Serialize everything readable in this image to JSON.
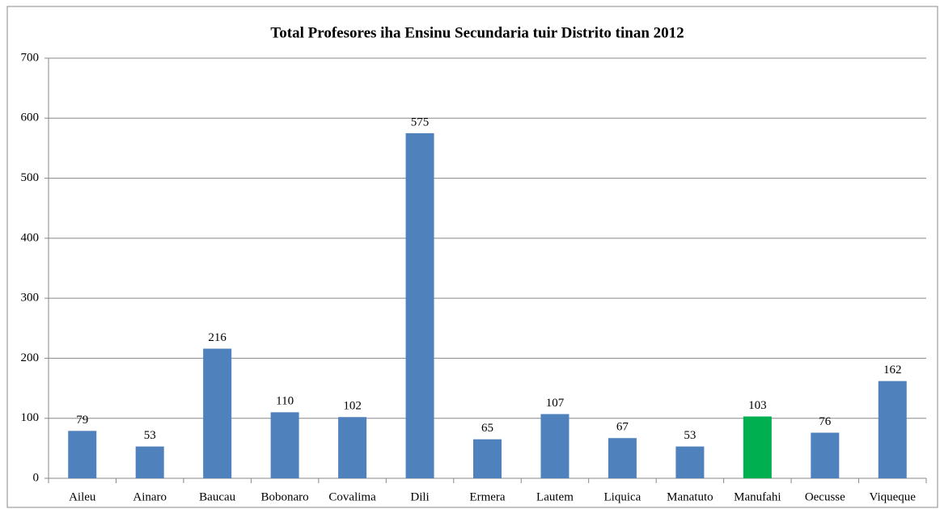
{
  "chart_data": {
    "type": "bar",
    "title": "Total Profesores iha Ensinu Secundaria tuir Distrito tinan 2012",
    "categories": [
      "Aileu",
      "Ainaro",
      "Baucau",
      "Bobonaro",
      "Covalima",
      "Dili",
      "Ermera",
      "Lautem",
      "Liquica",
      "Manatuto",
      "Manufahi",
      "Oecusse",
      "Viqueque"
    ],
    "values": [
      79,
      53,
      216,
      110,
      102,
      575,
      65,
      107,
      67,
      53,
      103,
      76,
      162
    ],
    "colors": [
      "#4f81bd",
      "#4f81bd",
      "#4f81bd",
      "#4f81bd",
      "#4f81bd",
      "#4f81bd",
      "#4f81bd",
      "#4f81bd",
      "#4f81bd",
      "#4f81bd",
      "#00b050",
      "#4f81bd",
      "#4f81bd"
    ],
    "ylim": [
      0,
      700
    ],
    "yticks": [
      0,
      100,
      200,
      300,
      400,
      500,
      600,
      700
    ],
    "grid": true
  }
}
